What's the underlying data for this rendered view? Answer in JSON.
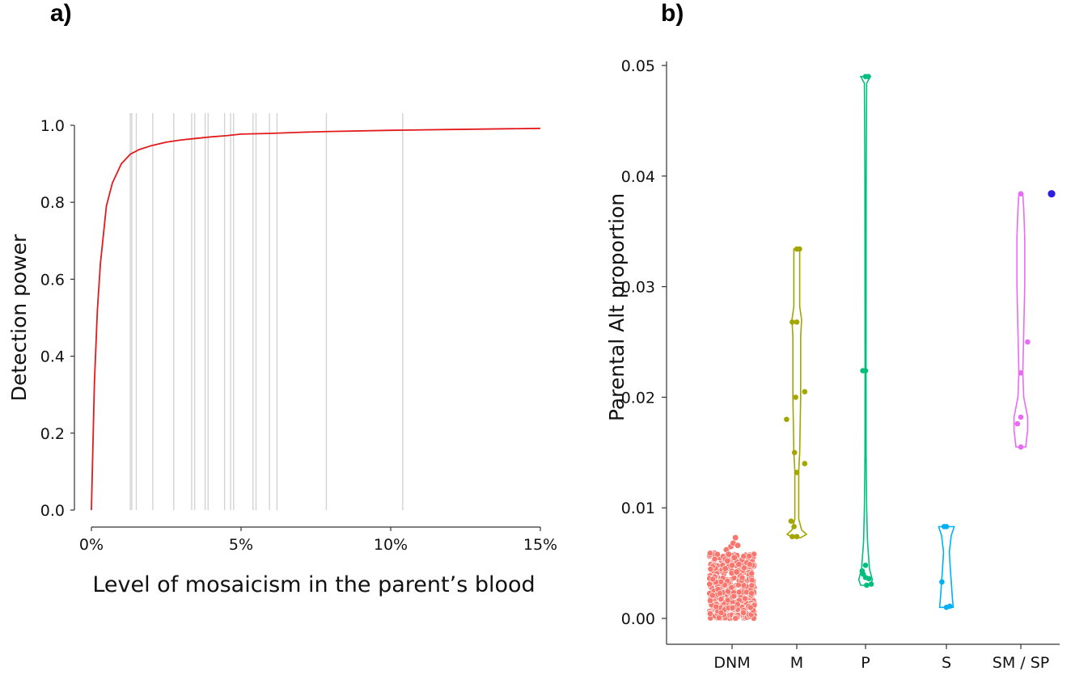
{
  "panel_labels": {
    "a": "a)",
    "b": "b)"
  },
  "chart_data": [
    {
      "type": "line",
      "panel": "a)",
      "title": "",
      "xlabel": "Level of mosaicism in the parent’s blood",
      "ylabel": "Detection power",
      "xlim": [
        0,
        15
      ],
      "ylim": [
        0,
        1
      ],
      "x_ticks": [
        0,
        5,
        10,
        15
      ],
      "x_tick_labels": [
        "0%",
        "5%",
        "10%",
        "15%"
      ],
      "y_ticks": [
        0,
        0.2,
        0.4,
        0.6,
        0.8,
        1.0
      ],
      "y_tick_labels": [
        "0.0",
        "0.2",
        "0.4",
        "0.6",
        "0.8",
        "1.0"
      ],
      "grid": false,
      "series": [
        {
          "color": "#e31a1c",
          "x": [
            0,
            0.1,
            0.2,
            0.3,
            0.5,
            0.7,
            1.0,
            1.3,
            1.6,
            2.0,
            2.5,
            3.0,
            3.5,
            4.0,
            4.5,
            5.0,
            6.0,
            7.0,
            8.0,
            10.0,
            12.0,
            15.0
          ],
          "y": [
            0,
            0.33,
            0.52,
            0.64,
            0.79,
            0.85,
            0.9,
            0.925,
            0.937,
            0.947,
            0.956,
            0.962,
            0.966,
            0.97,
            0.973,
            0.977,
            0.979,
            0.982,
            0.984,
            0.987,
            0.989,
            0.992
          ]
        }
      ],
      "vlines": {
        "color": "#d3d3d3",
        "x": [
          1.3,
          1.35,
          1.5,
          2.05,
          2.75,
          3.35,
          3.45,
          3.8,
          3.9,
          4.45,
          4.65,
          4.75,
          5.4,
          5.5,
          5.95,
          6.2,
          7.85,
          10.4
        ]
      }
    },
    {
      "type": "scatter",
      "panel": "b)",
      "title": "",
      "xlabel": "",
      "ylabel": "Parental Alt proportion",
      "categories": [
        "DNM",
        "M",
        "P",
        "S",
        "SM / SP"
      ],
      "ylim": [
        0,
        0.05
      ],
      "y_ticks": [
        0,
        0.01,
        0.02,
        0.03,
        0.04,
        0.05
      ],
      "y_tick_labels": [
        "0.00",
        "0.01",
        "0.02",
        "0.03",
        "0.04",
        "0.05"
      ],
      "grid": false,
      "groups": [
        {
          "category": "DNM",
          "color": "#f8766d",
          "dense_cloud": {
            "min": 0.0,
            "max": 0.0073
          },
          "points": [
            {
              "dx": -0.25,
              "y": 0.0062
            },
            {
              "dx": -0.15,
              "y": 0.0058
            },
            {
              "dx": -0.05,
              "y": 0.0065
            },
            {
              "dx": 0.05,
              "y": 0.0068
            },
            {
              "dx": 0.15,
              "y": 0.0073
            },
            {
              "dx": 0.25,
              "y": 0.0066
            },
            {
              "dx": -0.2,
              "y": 0.0052
            },
            {
              "dx": 0.1,
              "y": 0.0055
            },
            {
              "dx": 0.3,
              "y": 0.0049
            },
            {
              "dx": -0.3,
              "y": 0.0045
            },
            {
              "dx": 0.0,
              "y": 0.0048
            },
            {
              "dx": 0.2,
              "y": 0.0042
            }
          ]
        },
        {
          "category": "M",
          "color": "#a3a500",
          "violin": [
            [
              0.0073,
              0.04
            ],
            [
              0.0076,
              0.1
            ],
            [
              0.008,
              0.05
            ],
            [
              0.009,
              0.02
            ],
            [
              0.0133,
              0.02
            ],
            [
              0.015,
              0.03
            ],
            [
              0.02,
              0.04
            ],
            [
              0.0255,
              0.04
            ],
            [
              0.027,
              0.05
            ],
            [
              0.0282,
              0.03
            ],
            [
              0.031,
              0.03
            ],
            [
              0.0334,
              0.03
            ]
          ],
          "points": [
            {
              "dx": -0.45,
              "y": 0.018
            },
            {
              "dx": -0.2,
              "y": 0.0268
            },
            {
              "dx": 0.0,
              "y": 0.0268
            },
            {
              "dx": 0.12,
              "y": 0.0334
            },
            {
              "dx": 0.0,
              "y": 0.0334
            },
            {
              "dx": -0.1,
              "y": 0.015
            },
            {
              "dx": 0.0,
              "y": 0.0132
            },
            {
              "dx": -0.05,
              "y": 0.02
            },
            {
              "dx": 0.35,
              "y": 0.0205
            },
            {
              "dx": 0.35,
              "y": 0.014
            },
            {
              "dx": -0.25,
              "y": 0.0088
            },
            {
              "dx": -0.12,
              "y": 0.0083
            },
            {
              "dx": -0.2,
              "y": 0.0074
            },
            {
              "dx": 0.0,
              "y": 0.0074
            }
          ]
        },
        {
          "category": "P",
          "color": "#00bf7d",
          "violin": [
            [
              0.003,
              0.05
            ],
            [
              0.0035,
              0.07
            ],
            [
              0.0045,
              0.04
            ],
            [
              0.007,
              0.02
            ],
            [
              0.01,
              0.012
            ],
            [
              0.015,
              0.006
            ],
            [
              0.0225,
              0.005
            ],
            [
              0.03,
              0.006
            ],
            [
              0.04,
              0.007
            ],
            [
              0.0484,
              0.012
            ],
            [
              0.049,
              0.05
            ]
          ],
          "points": [
            {
              "dx": 0.0,
              "y": 0.049
            },
            {
              "dx": 0.12,
              "y": 0.049
            },
            {
              "dx": -0.12,
              "y": 0.0224
            },
            {
              "dx": 0.0,
              "y": 0.0224
            },
            {
              "dx": -0.15,
              "y": 0.0043
            },
            {
              "dx": -0.1,
              "y": 0.004
            },
            {
              "dx": 0.0,
              "y": 0.0048
            },
            {
              "dx": 0.0,
              "y": 0.0037
            },
            {
              "dx": 0.15,
              "y": 0.0036
            },
            {
              "dx": 0.25,
              "y": 0.0031
            },
            {
              "dx": 0.05,
              "y": 0.003
            }
          ]
        },
        {
          "category": "S",
          "color": "#00b0f6",
          "violin": [
            [
              0.001,
              0.07
            ],
            [
              0.002,
              0.06
            ],
            [
              0.0033,
              0.05
            ],
            [
              0.0045,
              0.04
            ],
            [
              0.006,
              0.03
            ],
            [
              0.0075,
              0.05
            ],
            [
              0.0083,
              0.08
            ]
          ],
          "points": [
            {
              "dx": -0.1,
              "y": 0.0083
            },
            {
              "dx": 0.0,
              "y": 0.0083
            },
            {
              "dx": -0.2,
              "y": 0.0033
            },
            {
              "dx": 0.0,
              "y": 0.001
            },
            {
              "dx": 0.15,
              "y": 0.0011
            }
          ]
        },
        {
          "category": "SM / SP",
          "color": "#e76bf3",
          "violin": [
            [
              0.0155,
              0.05
            ],
            [
              0.017,
              0.07
            ],
            [
              0.0182,
              0.07
            ],
            [
              0.02,
              0.03
            ],
            [
              0.0222,
              0.02
            ],
            [
              0.026,
              0.03
            ],
            [
              0.03,
              0.04
            ],
            [
              0.0345,
              0.04
            ],
            [
              0.037,
              0.03
            ],
            [
              0.0384,
              0.02
            ]
          ],
          "points": [
            {
              "dx": 0.0,
              "y": 0.0384
            },
            {
              "dx": 0.0,
              "y": 0.0222
            },
            {
              "dx": 0.3,
              "y": 0.025
            },
            {
              "dx": -0.15,
              "y": 0.0176
            },
            {
              "dx": 0.0,
              "y": 0.0182
            },
            {
              "dx": 0.0,
              "y": 0.0155
            }
          ],
          "highlight_point": {
            "dx": 1.0,
            "y": 0.0384,
            "color": "#2b1ee0"
          }
        }
      ]
    }
  ]
}
